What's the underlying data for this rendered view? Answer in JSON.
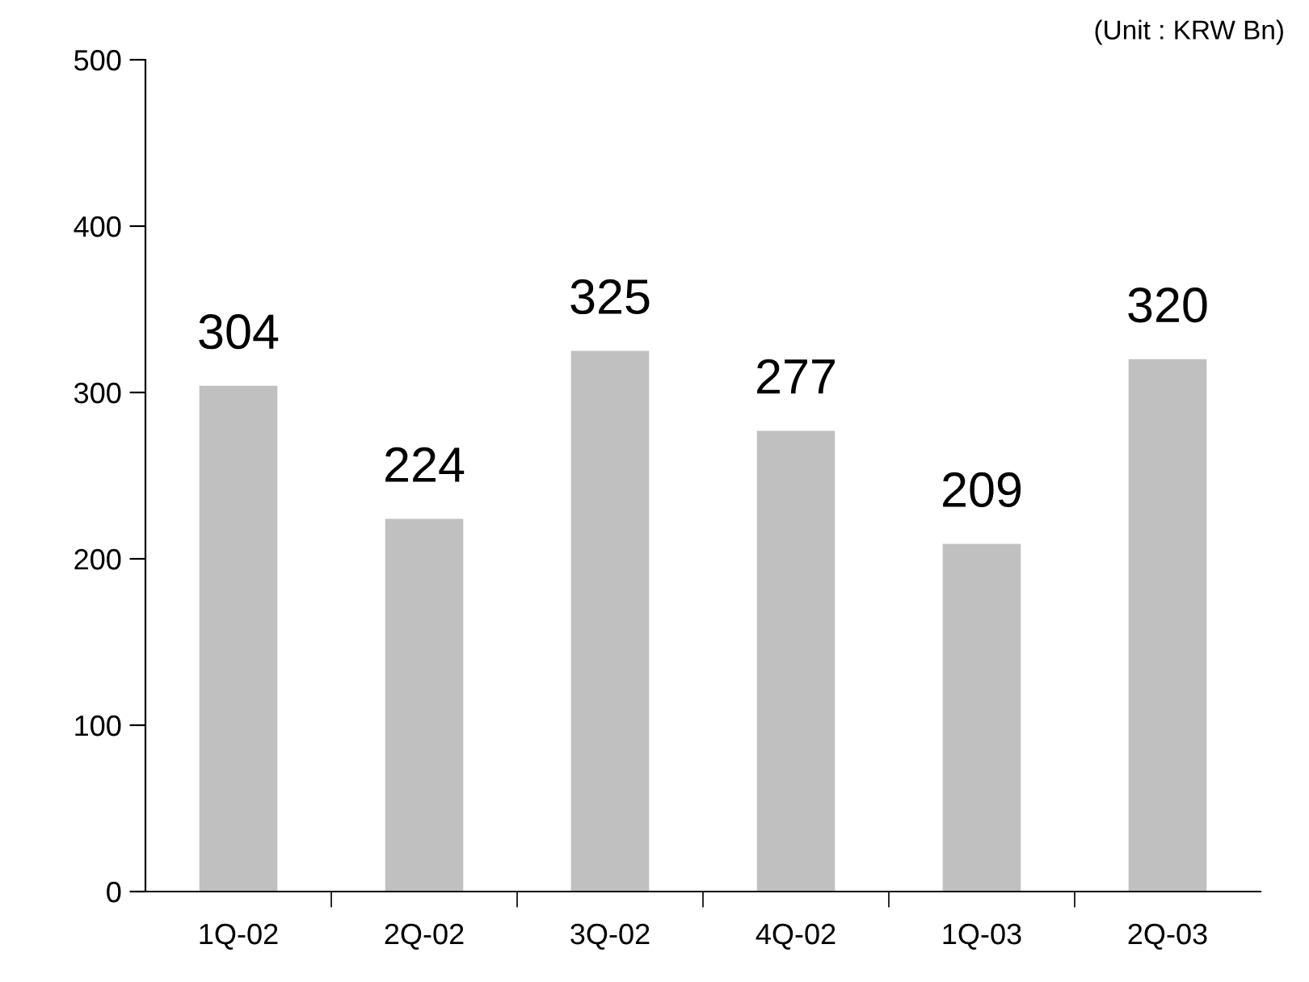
{
  "chart_data": {
    "type": "bar",
    "categories": [
      "1Q-02",
      "2Q-02",
      "3Q-02",
      "4Q-02",
      "1Q-03",
      "2Q-03"
    ],
    "values": [
      304,
      224,
      325,
      277,
      209,
      320
    ],
    "color": "#c0c0c0",
    "ylim": [
      0,
      500
    ],
    "yticks": [
      0,
      100,
      200,
      300,
      400,
      500
    ],
    "data_labels": true,
    "grid": false,
    "annotations": [
      "(Unit : KRW Bn)"
    ]
  }
}
